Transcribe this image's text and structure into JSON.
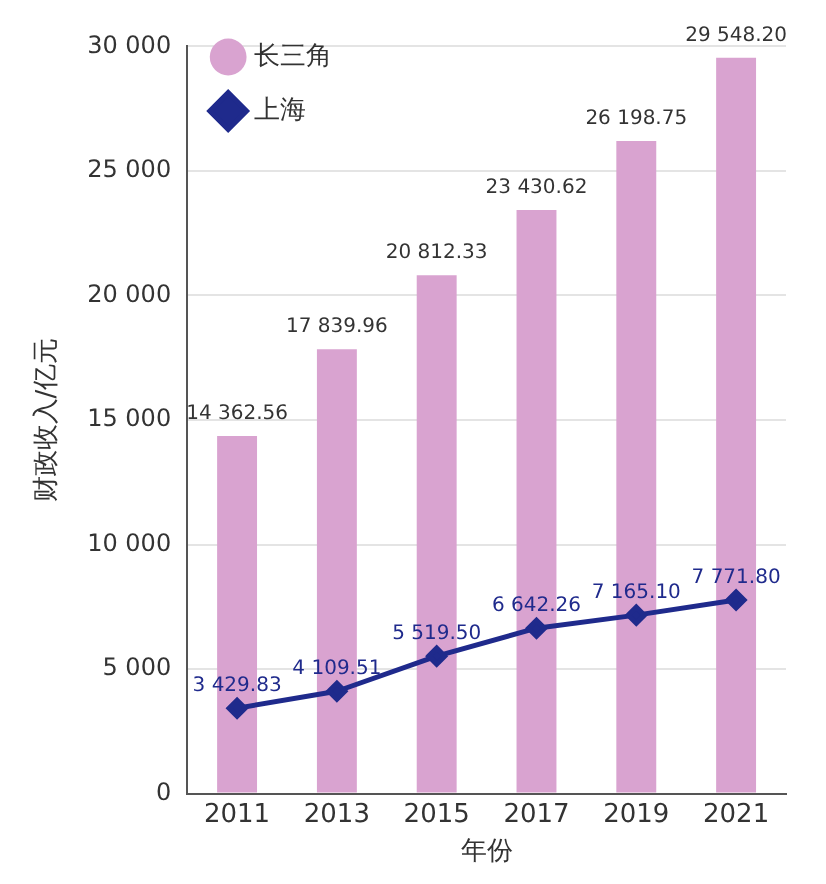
{
  "chart_data": {
    "type": "bar",
    "xlabel": "年份",
    "ylabel": "财政收入/亿元",
    "categories": [
      "2011",
      "2013",
      "2015",
      "2017",
      "2019",
      "2021"
    ],
    "series": [
      {
        "name": "长三角",
        "color": "#d9a3d0",
        "values": [
          14362.56,
          17839.96,
          20812.33,
          23430.62,
          26198.75,
          29548.2
        ],
        "value_labels": [
          "14 362.56",
          "17 839.96",
          "20 812.33",
          "23 430.62",
          "26 198.75",
          "29 548.20"
        ]
      },
      {
        "name": "上海",
        "type": "line",
        "color": "#1f2a8c",
        "marker": "diamond",
        "values": [
          3429.83,
          4109.51,
          5519.5,
          6642.26,
          7165.1,
          7771.8
        ],
        "value_labels": [
          "3 429.83",
          "4 109.51",
          "5 519.50",
          "6 642.26",
          "7 165.10",
          "7 771.80"
        ]
      }
    ],
    "ylim": [
      0,
      30000
    ],
    "yticks": [
      {
        "value": 0,
        "label": "0"
      },
      {
        "value": 5000,
        "label": "5 000"
      },
      {
        "value": 10000,
        "label": "10 000"
      },
      {
        "value": 15000,
        "label": "15 000"
      },
      {
        "value": 20000,
        "label": "20 000"
      },
      {
        "value": 25000,
        "label": "25 000"
      },
      {
        "value": 30000,
        "label": "30 000"
      }
    ],
    "grid": "y",
    "legend": "top left"
  }
}
